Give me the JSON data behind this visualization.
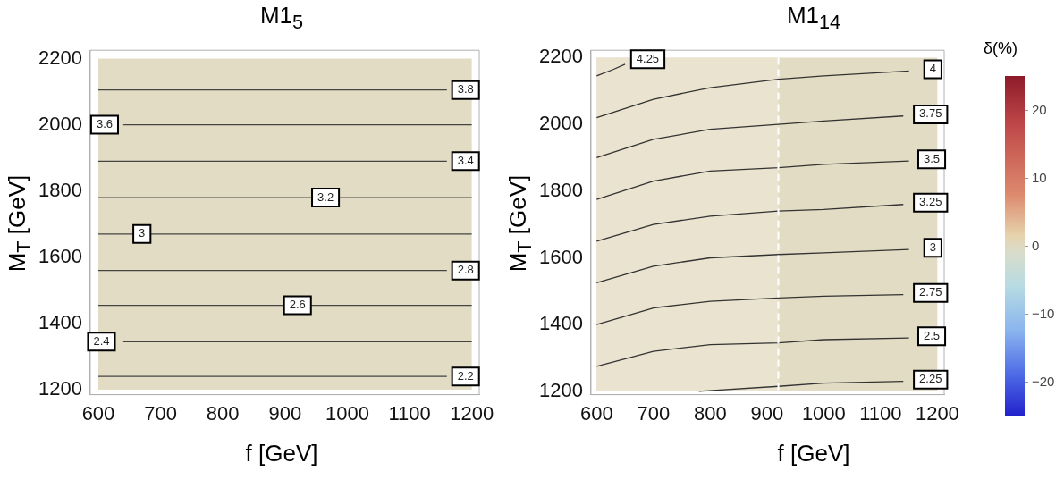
{
  "chart_data": [
    {
      "type": "line",
      "title": "M1$_{5}$",
      "xlabel": "f [GeV]",
      "ylabel": "M$_{T}$ [GeV]",
      "xlim": [
        587,
        1212
      ],
      "ylim": [
        1185,
        2225
      ],
      "xticks": [
        600,
        700,
        800,
        900,
        1000,
        1100,
        1200
      ],
      "yticks": [
        1200,
        1400,
        1600,
        1800,
        2000,
        2200
      ],
      "grid": false,
      "legend": false,
      "marker": "none",
      "series": [
        {
          "color": "#444444",
          "x": [
            600,
            1160
          ],
          "values": [
            2105,
            2105
          ]
        },
        {
          "color": "#444444",
          "x": [
            640,
            1200
          ],
          "values": [
            2000,
            2000
          ]
        },
        {
          "color": "#444444",
          "x": [
            600,
            1160
          ],
          "values": [
            1890,
            1890
          ]
        },
        {
          "color": "#444444",
          "x": [
            600,
            1200
          ],
          "values": [
            1780,
            1780
          ]
        },
        {
          "color": "#444444",
          "x": [
            600,
            1200
          ],
          "values": [
            1670,
            1670
          ]
        },
        {
          "color": "#444444",
          "x": [
            600,
            1160
          ],
          "values": [
            1560,
            1560
          ]
        },
        {
          "color": "#444444",
          "x": [
            600,
            1200
          ],
          "values": [
            1455,
            1455
          ]
        },
        {
          "color": "#444444",
          "x": [
            640,
            1200
          ],
          "values": [
            1345,
            1345
          ]
        },
        {
          "color": "#444444",
          "x": [
            600,
            1160
          ],
          "values": [
            1240,
            1240
          ]
        }
      ],
      "bands": [
        {
          "axis": "x",
          "from": 600,
          "to": 1200,
          "color": "#e3dcc4"
        }
      ],
      "annotations": [
        {
          "text": "3.8",
          "x": 1190,
          "y": 2105
        },
        {
          "text": "3.6",
          "x": 610,
          "y": 2000
        },
        {
          "text": "3.4",
          "x": 1190,
          "y": 1890
        },
        {
          "text": "3.2",
          "x": 965,
          "y": 1780
        },
        {
          "text": "3",
          "x": 670,
          "y": 1670
        },
        {
          "text": "2.8",
          "x": 1190,
          "y": 1560
        },
        {
          "text": "2.6",
          "x": 920,
          "y": 1455
        },
        {
          "text": "2.4",
          "x": 605,
          "y": 1345
        },
        {
          "text": "2.2",
          "x": 1190,
          "y": 1240
        }
      ]
    },
    {
      "type": "line",
      "title": "M1$_{14}$",
      "xlabel": "f [GeV]",
      "ylabel": "M$_{T}$ [GeV]",
      "xlim": [
        590,
        1212
      ],
      "ylim": [
        1190,
        2222
      ],
      "xticks": [
        600,
        700,
        800,
        900,
        1000,
        1100,
        1200
      ],
      "yticks": [
        1200,
        1400,
        1600,
        1800,
        2000,
        2200
      ],
      "grid": false,
      "legend": false,
      "marker": "none",
      "clabel": "δ(%)",
      "clim": [
        -25,
        25
      ],
      "cticks": [
        {
          "value": -20,
          "label": "−20"
        },
        {
          "value": -10,
          "label": "−10"
        },
        0,
        10,
        20
      ],
      "series": [
        {
          "color": "#333333",
          "x": [
            600,
            630,
            650
          ],
          "values": [
            2145,
            2165,
            2180
          ]
        },
        {
          "color": "#333333",
          "x": [
            600,
            700,
            800,
            920,
            1000,
            1150
          ],
          "values": [
            2020,
            2075,
            2110,
            2135,
            2145,
            2160
          ]
        },
        {
          "color": "#333333",
          "x": [
            600,
            700,
            800,
            920,
            1000,
            1140
          ],
          "values": [
            1900,
            1955,
            1985,
            2000,
            2010,
            2025
          ]
        },
        {
          "color": "#333333",
          "x": [
            600,
            700,
            800,
            920,
            1000,
            1150
          ],
          "values": [
            1775,
            1830,
            1860,
            1870,
            1880,
            1890
          ]
        },
        {
          "color": "#333333",
          "x": [
            600,
            700,
            800,
            920,
            1000,
            1140
          ],
          "values": [
            1650,
            1700,
            1725,
            1740,
            1745,
            1760
          ]
        },
        {
          "color": "#333333",
          "x": [
            600,
            700,
            800,
            920,
            1000,
            1150
          ],
          "values": [
            1525,
            1575,
            1600,
            1610,
            1615,
            1625
          ]
        },
        {
          "color": "#333333",
          "x": [
            600,
            700,
            800,
            920,
            1000,
            1140
          ],
          "values": [
            1400,
            1450,
            1470,
            1480,
            1485,
            1490
          ]
        },
        {
          "color": "#333333",
          "x": [
            600,
            700,
            800,
            920,
            1000,
            1150
          ],
          "values": [
            1275,
            1320,
            1340,
            1345,
            1355,
            1360
          ]
        },
        {
          "color": "#333333",
          "x": [
            780,
            920,
            1000,
            1140
          ],
          "values": [
            1200,
            1215,
            1225,
            1230
          ]
        }
      ],
      "bands": [
        {
          "axis": "x",
          "from": 600,
          "to": 1200,
          "color": "#e3dcc4"
        },
        {
          "axis": "x",
          "from": 600,
          "to": 920,
          "color": "#e9e3cf"
        }
      ],
      "ref_lines": [
        {
          "axis": "x",
          "value": 920,
          "color": "#ffffff",
          "line_style": "dashed"
        }
      ],
      "annotations": [
        {
          "text": "4.25",
          "x": 690,
          "y": 2195
        },
        {
          "text": "4",
          "x": 1192,
          "y": 2165
        },
        {
          "text": "3.75",
          "x": 1188,
          "y": 2030
        },
        {
          "text": "3.5",
          "x": 1190,
          "y": 1895
        },
        {
          "text": "3.25",
          "x": 1188,
          "y": 1765
        },
        {
          "text": "3",
          "x": 1192,
          "y": 1630
        },
        {
          "text": "2.75",
          "x": 1188,
          "y": 1495
        },
        {
          "text": "2.5",
          "x": 1190,
          "y": 1365
        },
        {
          "text": "2.25",
          "x": 1188,
          "y": 1235
        }
      ]
    }
  ]
}
